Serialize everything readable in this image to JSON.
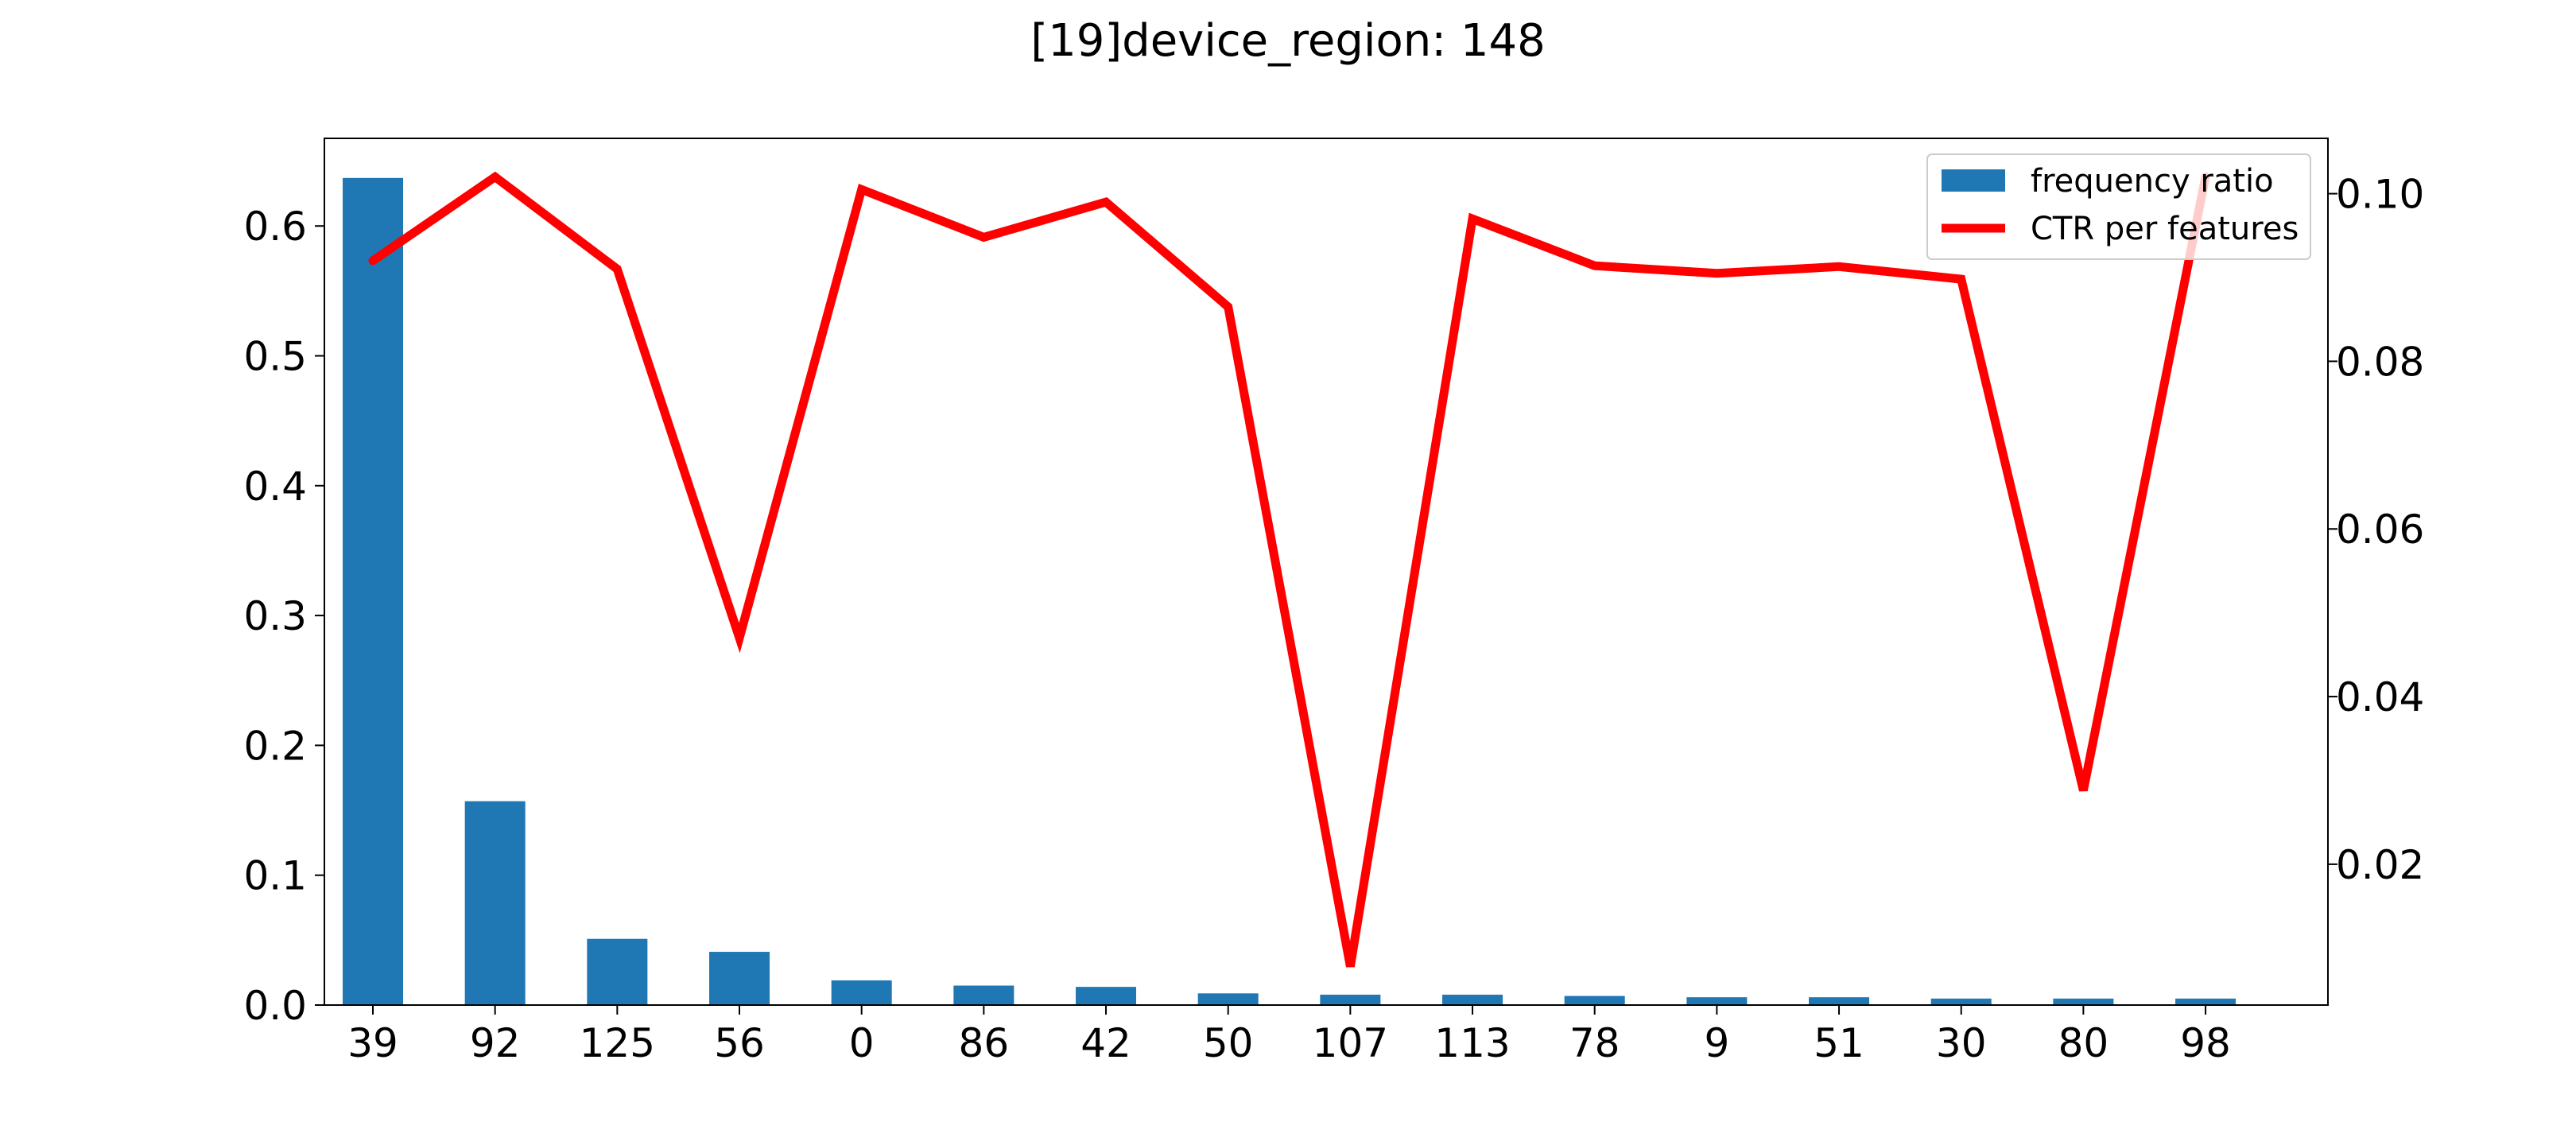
{
  "chart_data": {
    "type": "bar",
    "title": "[19]device_region: 148",
    "xlabel": "",
    "ylabel": "",
    "categories": [
      "39",
      "92",
      "125",
      "56",
      "0",
      "86",
      "42",
      "50",
      "107",
      "113",
      "78",
      "9",
      "51",
      "30",
      "80",
      "98"
    ],
    "series": [
      {
        "name": "frequency ratio",
        "type": "bar",
        "axis": "left",
        "color": "#1f77b4",
        "values": [
          0.637,
          0.157,
          0.051,
          0.041,
          0.019,
          0.015,
          0.014,
          0.009,
          0.008,
          0.008,
          0.007,
          0.006,
          0.006,
          0.005,
          0.005,
          0.005
        ]
      },
      {
        "name": "CTR per features",
        "type": "line",
        "axis": "right",
        "color": "#ff0000",
        "values": [
          0.092,
          0.102,
          0.091,
          0.047,
          0.1005,
          0.0948,
          0.099,
          0.0865,
          0.0078,
          0.097,
          0.0914,
          0.0905,
          0.0913,
          0.0898,
          0.0288,
          0.102
        ]
      }
    ],
    "y_left": {
      "ylim": [
        0,
        0.6675
      ],
      "ticks": [
        0.0,
        0.1,
        0.2,
        0.3,
        0.4,
        0.5,
        0.6
      ],
      "tick_labels": [
        "0.0",
        "0.1",
        "0.2",
        "0.3",
        "0.4",
        "0.5",
        "0.6"
      ]
    },
    "y_right": {
      "ylim": [
        0.0032,
        0.1066
      ],
      "ticks": [
        0.02,
        0.04,
        0.06,
        0.08,
        0.1
      ],
      "tick_labels": [
        "0.02",
        "0.04",
        "0.06",
        "0.08",
        "0.10"
      ]
    },
    "grid": false,
    "legend_position": "top-right"
  }
}
